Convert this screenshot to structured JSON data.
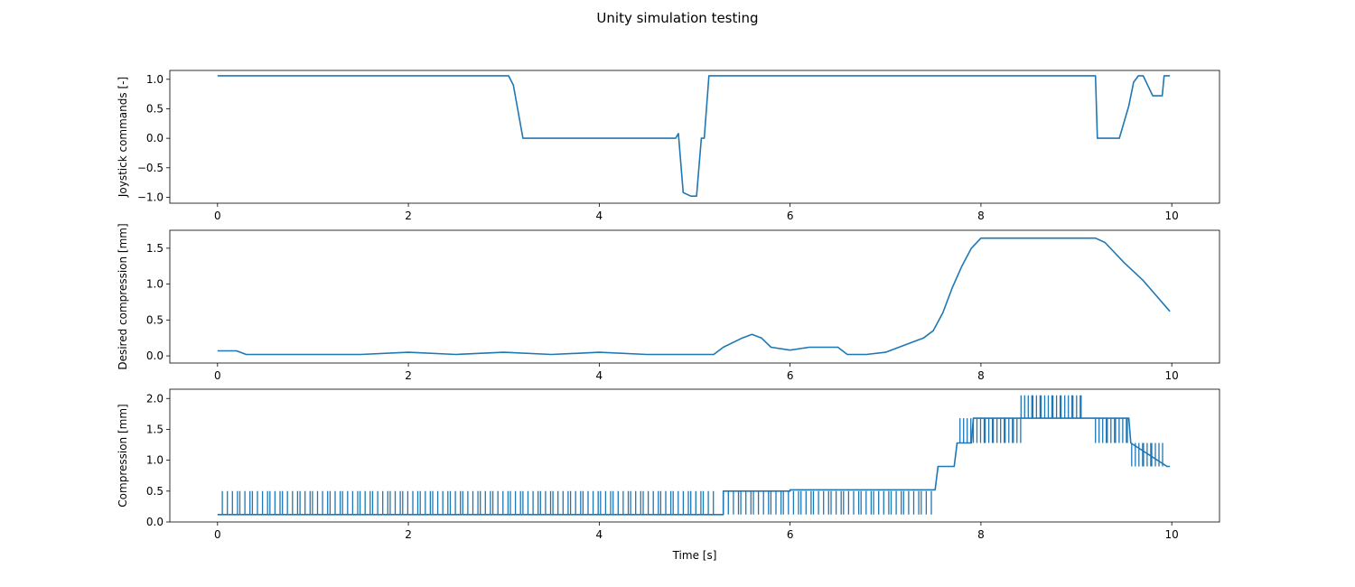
{
  "figure": {
    "title": "Unity simulation testing"
  },
  "chart_data": [
    {
      "type": "line",
      "title": "",
      "xlabel": "",
      "ylabel": "Joystick commands [-]",
      "xlim": [
        -0.5,
        10.5
      ],
      "ylim": [
        -1.1,
        1.15
      ],
      "xticks": [
        0,
        2,
        4,
        6,
        8,
        10
      ],
      "yticks": [
        -1.0,
        -0.5,
        0.0,
        0.5,
        1.0
      ],
      "xtick_labels": [
        "0",
        "2",
        "4",
        "6",
        "8",
        "10"
      ],
      "ytick_labels": [
        "−1.0",
        "−0.5",
        "0.0",
        "0.5",
        "1.0"
      ],
      "grid": false,
      "color": "#1f77b4",
      "series": [
        {
          "x": [
            0,
            3.05,
            3.1,
            3.2,
            4.8,
            4.83,
            4.88,
            4.96,
            5.02,
            5.07,
            5.1,
            5.15,
            5.18,
            9.2,
            9.22,
            9.45,
            9.55,
            9.6,
            9.65,
            9.7,
            9.8,
            9.8,
            9.9,
            9.92,
            9.98
          ],
          "y": [
            1.06,
            1.06,
            0.9,
            0.0,
            0.0,
            0.08,
            -0.92,
            -0.98,
            -0.98,
            0.0,
            0.0,
            1.06,
            1.06,
            1.06,
            0.0,
            0.0,
            0.55,
            0.95,
            1.06,
            1.06,
            0.72,
            0.72,
            0.72,
            1.06,
            1.06
          ]
        }
      ],
      "annotations": []
    },
    {
      "type": "line",
      "title": "",
      "xlabel": "",
      "ylabel": "Desired compression [mm]",
      "xlim": [
        -0.5,
        10.5
      ],
      "ylim": [
        -0.1,
        1.75
      ],
      "xticks": [
        0,
        2,
        4,
        6,
        8,
        10
      ],
      "yticks": [
        0.0,
        0.5,
        1.0,
        1.5
      ],
      "xtick_labels": [
        "0",
        "2",
        "4",
        "6",
        "8",
        "10"
      ],
      "ytick_labels": [
        "0.0",
        "0.5",
        "1.0",
        "1.5"
      ],
      "grid": false,
      "color": "#1f77b4",
      "series": [
        {
          "x": [
            0,
            0.2,
            0.3,
            0.5,
            1.0,
            1.5,
            2.0,
            2.5,
            3.0,
            3.5,
            4.0,
            4.5,
            5.0,
            5.2,
            5.3,
            5.5,
            5.6,
            5.7,
            5.8,
            6.0,
            6.2,
            6.5,
            6.6,
            6.8,
            7.0,
            7.2,
            7.4,
            7.5,
            7.6,
            7.7,
            7.8,
            7.9,
            8.0,
            8.5,
            9.0,
            9.2,
            9.3,
            9.5,
            9.7,
            9.85,
            9.98
          ],
          "y": [
            0.07,
            0.07,
            0.02,
            0.02,
            0.02,
            0.02,
            0.05,
            0.02,
            0.05,
            0.02,
            0.05,
            0.02,
            0.02,
            0.02,
            0.12,
            0.25,
            0.3,
            0.25,
            0.12,
            0.08,
            0.12,
            0.12,
            0.02,
            0.02,
            0.05,
            0.15,
            0.25,
            0.35,
            0.6,
            0.95,
            1.25,
            1.5,
            1.64,
            1.64,
            1.64,
            1.64,
            1.58,
            1.3,
            1.05,
            0.82,
            0.62
          ]
        }
      ],
      "annotations": []
    },
    {
      "type": "line",
      "title": "",
      "xlabel": "Time [s]",
      "ylabel": "Compression [mm]",
      "xlim": [
        -0.5,
        10.5
      ],
      "ylim": [
        0.0,
        2.15
      ],
      "xticks": [
        0,
        2,
        4,
        6,
        8,
        10
      ],
      "yticks": [
        0.0,
        0.5,
        1.0,
        1.5,
        2.0
      ],
      "xtick_labels": [
        "0",
        "2",
        "4",
        "6",
        "8",
        "10"
      ],
      "ytick_labels": [
        "0.0",
        "0.5",
        "1.0",
        "1.5",
        "2.0"
      ],
      "grid": false,
      "color": "#1f77b4",
      "series": [
        {
          "x": [
            0,
            5.3,
            5.3,
            6.0,
            6.0,
            7.52,
            7.55,
            7.72,
            7.75,
            7.9,
            7.92,
            8.4,
            8.42,
            9.55,
            9.57,
            9.95,
            9.98
          ],
          "y": [
            0.12,
            0.12,
            0.5,
            0.5,
            0.52,
            0.52,
            0.9,
            0.9,
            1.28,
            1.28,
            1.68,
            1.68,
            1.68,
            1.68,
            1.28,
            0.9,
            0.9
          ]
        }
      ],
      "spikes": [
        {
          "x0": 0.05,
          "x1": 5.2,
          "low": 0.12,
          "high": 0.5
        },
        {
          "x0": 5.3,
          "x1": 7.5,
          "low": 0.12,
          "high": 0.5
        },
        {
          "x0": 7.78,
          "x1": 7.9,
          "low": 1.28,
          "high": 1.68
        },
        {
          "x0": 7.92,
          "x1": 8.4,
          "low": 1.28,
          "high": 1.68
        },
        {
          "x0": 8.42,
          "x1": 9.05,
          "low": 1.68,
          "high": 2.05
        },
        {
          "x0": 9.2,
          "x1": 9.55,
          "low": 1.28,
          "high": 1.68
        },
        {
          "x0": 9.58,
          "x1": 9.9,
          "low": 0.9,
          "high": 1.28
        }
      ],
      "annotations": []
    }
  ]
}
